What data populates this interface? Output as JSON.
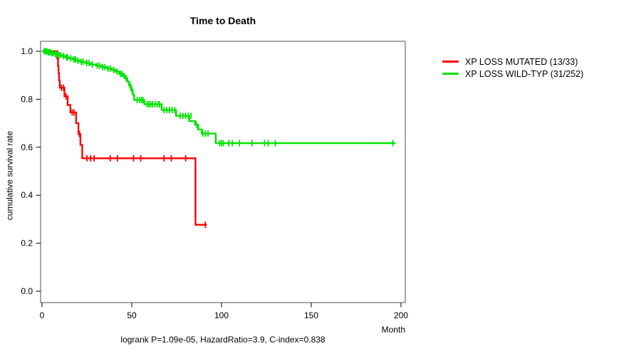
{
  "annotation": "logrank P=1.09e-05, HazardRatio=3.9, C-index=0.838",
  "chart_data": {
    "type": "line",
    "subtype": "kaplan-meier-step",
    "title": "Time to Death",
    "xlabel": "Month",
    "ylabel": "cumulative survival rate",
    "x_ticks": [
      0,
      50,
      100,
      150,
      200
    ],
    "y_ticks": [
      0,
      0.2,
      0.4,
      0.6,
      0.8,
      1.0
    ],
    "xlim": [
      0,
      203
    ],
    "ylim": [
      0,
      1.04
    ],
    "grid": false,
    "legend_position": "right-outside",
    "stats": {
      "logrank_p": "1.09e-05",
      "hazard_ratio": "3.9",
      "c_index": "0.838"
    },
    "series": [
      {
        "name": "XP LOSS MUTATED (13/33)",
        "events": "13/33",
        "color": "#ff0000",
        "end_time": 91.8,
        "steps": [
          [
            0,
            1.0
          ],
          [
            8.5,
            0.97
          ],
          [
            8.9,
            0.939
          ],
          [
            9.2,
            0.909
          ],
          [
            9.5,
            0.879
          ],
          [
            9.9,
            0.848
          ],
          [
            12.5,
            0.812
          ],
          [
            14.3,
            0.776
          ],
          [
            15.8,
            0.745
          ],
          [
            19.0,
            0.7
          ],
          [
            20.3,
            0.655
          ],
          [
            21.4,
            0.61
          ],
          [
            22.4,
            0.554
          ],
          [
            85.5,
            0.277
          ]
        ],
        "censors": [
          [
            10.8,
            0.848
          ],
          [
            12.0,
            0.848
          ],
          [
            13.4,
            0.812
          ],
          [
            16.8,
            0.745
          ],
          [
            17.8,
            0.745
          ],
          [
            20.9,
            0.655
          ],
          [
            25,
            0.554
          ],
          [
            27,
            0.554
          ],
          [
            29,
            0.554
          ],
          [
            38,
            0.554
          ],
          [
            42,
            0.554
          ],
          [
            51,
            0.554
          ],
          [
            55,
            0.554
          ],
          [
            68,
            0.554
          ],
          [
            72,
            0.554
          ],
          [
            80,
            0.554
          ],
          [
            91,
            0.277
          ]
        ]
      },
      {
        "name": "XP LOSS WILD-TYP (31/252)",
        "events": "31/252",
        "color": "#00e400",
        "end_time": 197,
        "steps": [
          [
            0,
            1.0
          ],
          [
            3,
            0.996
          ],
          [
            5,
            0.992
          ],
          [
            7,
            0.988
          ],
          [
            9,
            0.984
          ],
          [
            11,
            0.98
          ],
          [
            13,
            0.975
          ],
          [
            15,
            0.971
          ],
          [
            17,
            0.966
          ],
          [
            19,
            0.961
          ],
          [
            21,
            0.956
          ],
          [
            24,
            0.951
          ],
          [
            27,
            0.945
          ],
          [
            30,
            0.94
          ],
          [
            33,
            0.934
          ],
          [
            36,
            0.928
          ],
          [
            39,
            0.922
          ],
          [
            41,
            0.915
          ],
          [
            43,
            0.906
          ],
          [
            45,
            0.897
          ],
          [
            46.5,
            0.887
          ],
          [
            47.5,
            0.874
          ],
          [
            48.5,
            0.858
          ],
          [
            49.5,
            0.84
          ],
          [
            50.5,
            0.82
          ],
          [
            51.3,
            0.797
          ],
          [
            57,
            0.779
          ],
          [
            66.7,
            0.755
          ],
          [
            74.7,
            0.731
          ],
          [
            82,
            0.709
          ],
          [
            85.3,
            0.694
          ],
          [
            87,
            0.674
          ],
          [
            89,
            0.657
          ],
          [
            96.8,
            0.617
          ]
        ],
        "censors": [
          [
            1.2,
            1.0
          ],
          [
            2.0,
            1.0
          ],
          [
            2.6,
            1.0
          ],
          [
            3.4,
            0.996
          ],
          [
            4.0,
            0.996
          ],
          [
            4.6,
            0.996
          ],
          [
            5.5,
            0.992
          ],
          [
            6.2,
            0.992
          ],
          [
            7.5,
            0.988
          ],
          [
            8.3,
            0.988
          ],
          [
            9.6,
            0.984
          ],
          [
            10.5,
            0.984
          ],
          [
            12,
            0.98
          ],
          [
            13.6,
            0.975
          ],
          [
            14.2,
            0.975
          ],
          [
            16,
            0.971
          ],
          [
            17.8,
            0.966
          ],
          [
            18.6,
            0.966
          ],
          [
            20,
            0.961
          ],
          [
            21.8,
            0.956
          ],
          [
            22.8,
            0.956
          ],
          [
            25,
            0.951
          ],
          [
            26.2,
            0.951
          ],
          [
            28,
            0.945
          ],
          [
            30.8,
            0.94
          ],
          [
            32,
            0.94
          ],
          [
            33.8,
            0.934
          ],
          [
            35,
            0.934
          ],
          [
            36.8,
            0.928
          ],
          [
            38,
            0.928
          ],
          [
            40,
            0.922
          ],
          [
            41.8,
            0.915
          ],
          [
            43.6,
            0.906
          ],
          [
            44.5,
            0.906
          ],
          [
            45.8,
            0.897
          ],
          [
            47,
            0.887
          ],
          [
            49,
            0.858
          ],
          [
            50,
            0.84
          ],
          [
            53,
            0.797
          ],
          [
            54.5,
            0.797
          ],
          [
            55.5,
            0.797
          ],
          [
            56.2,
            0.797
          ],
          [
            58.5,
            0.779
          ],
          [
            59.5,
            0.779
          ],
          [
            60.5,
            0.779
          ],
          [
            61.5,
            0.779
          ],
          [
            63,
            0.779
          ],
          [
            64.5,
            0.779
          ],
          [
            65.5,
            0.779
          ],
          [
            68,
            0.755
          ],
          [
            69.5,
            0.755
          ],
          [
            71,
            0.755
          ],
          [
            72.5,
            0.755
          ],
          [
            74,
            0.755
          ],
          [
            77,
            0.731
          ],
          [
            78.5,
            0.731
          ],
          [
            80,
            0.731
          ],
          [
            81.5,
            0.731
          ],
          [
            83,
            0.731
          ],
          [
            86,
            0.694
          ],
          [
            89.5,
            0.657
          ],
          [
            91,
            0.657
          ],
          [
            92.5,
            0.657
          ],
          [
            99,
            0.617
          ],
          [
            100,
            0.617
          ],
          [
            101,
            0.617
          ],
          [
            104,
            0.617
          ],
          [
            106,
            0.617
          ],
          [
            110,
            0.617
          ],
          [
            117,
            0.617
          ],
          [
            124,
            0.617
          ],
          [
            126,
            0.617
          ],
          [
            130,
            0.617
          ],
          [
            195.5,
            0.617
          ]
        ]
      }
    ]
  }
}
